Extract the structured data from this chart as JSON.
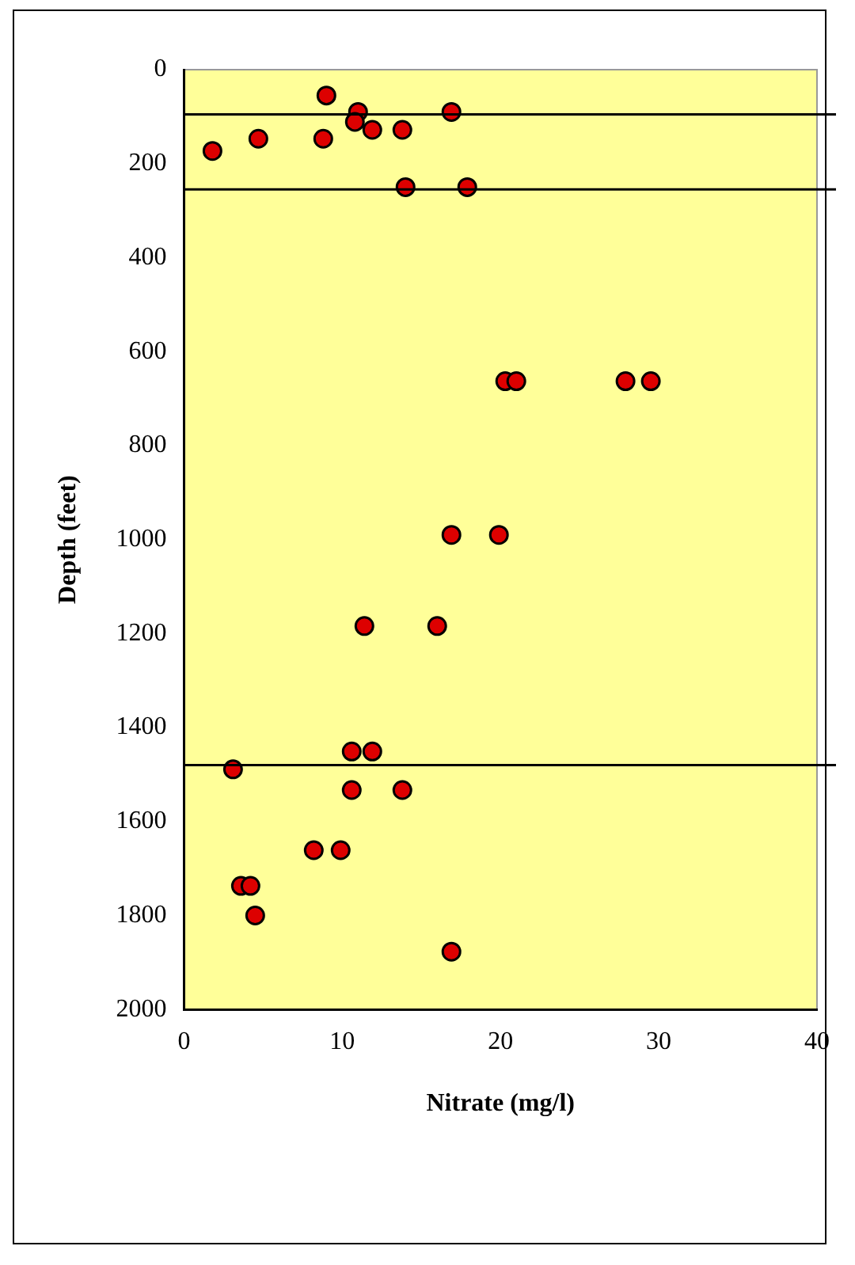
{
  "chart_data": {
    "type": "scatter",
    "xlabel": "Nitrate (mg/l)",
    "ylabel": "Depth (feet)",
    "series": [
      {
        "color": "#dd0000",
        "x": [
          9.0,
          11.0,
          16.9,
          10.8,
          11.9,
          13.8,
          4.7,
          8.8,
          1.8,
          14.0,
          17.9,
          20.3,
          21.0,
          27.9,
          29.5,
          16.9,
          19.9,
          11.4,
          16.0,
          10.6,
          11.9,
          3.1,
          10.6,
          13.8,
          8.2,
          9.9,
          3.6,
          4.2,
          4.5,
          16.9
        ],
        "values": [
          55,
          90,
          90,
          111,
          128,
          128,
          147,
          147,
          173,
          250,
          250,
          663,
          663,
          663,
          663,
          990,
          990,
          1184,
          1184,
          1451,
          1451,
          1489,
          1533,
          1533,
          1661,
          1661,
          1737,
          1737,
          1800,
          1877
        ]
      }
    ],
    "xlim": [
      0,
      40
    ],
    "xticks": [
      0,
      10,
      20,
      30,
      40
    ],
    "ylim": [
      2000,
      0
    ],
    "yticks": [
      0,
      200,
      400,
      600,
      800,
      1000,
      1200,
      1400,
      1600,
      1800,
      2000
    ],
    "ref_lines": [
      {
        "axis": "y",
        "value": 95,
        "color": "#000000"
      },
      {
        "axis": "y",
        "value": 255,
        "color": "#000000"
      },
      {
        "axis": "y",
        "value": 1480,
        "color": "#000000"
      }
    ],
    "grid": false,
    "legend": false,
    "marker": "circle"
  }
}
